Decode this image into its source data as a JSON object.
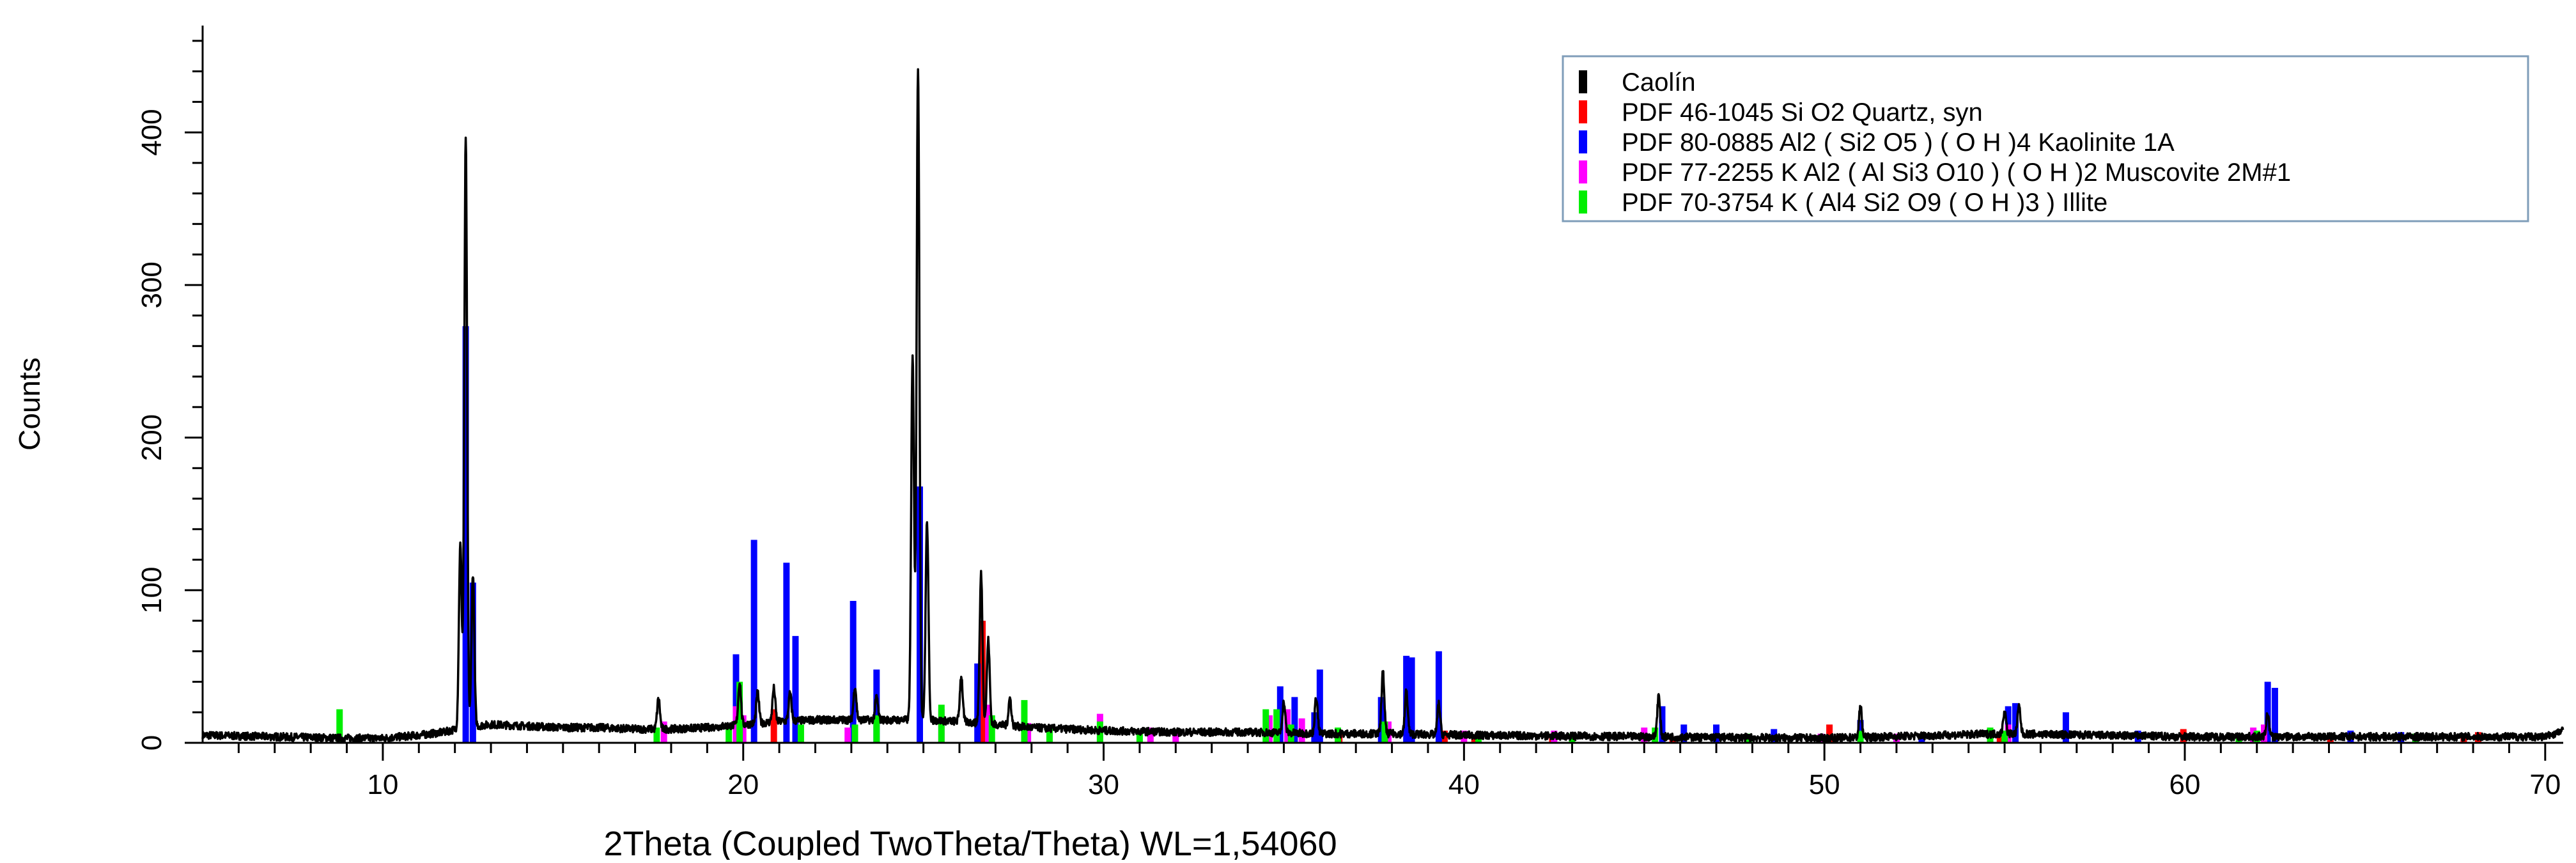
{
  "chart_data": {
    "type": "line",
    "xlabel": "2Theta (Coupled TwoTheta/Theta) WL=1,54060",
    "ylabel": "Counts",
    "xlim": [
      5,
      70.5
    ],
    "ylim": [
      0,
      470
    ],
    "x_ticks": [
      10,
      20,
      30,
      40,
      50,
      60,
      70
    ],
    "y_ticks": [
      0,
      100,
      200,
      300,
      400
    ],
    "grid": false,
    "legend_position": "top-right",
    "series": [
      {
        "name": "Caolín",
        "kind": "pattern",
        "color": "#000000",
        "baseline": [
          [
            5,
            5
          ],
          [
            7,
            4
          ],
          [
            9,
            3
          ],
          [
            10,
            3
          ],
          [
            11,
            5
          ],
          [
            11.7,
            7
          ],
          [
            12.2,
            10
          ],
          [
            13,
            12
          ],
          [
            14,
            11
          ],
          [
            15,
            10
          ],
          [
            16,
            10
          ],
          [
            17,
            9
          ],
          [
            18,
            9
          ],
          [
            19,
            10
          ],
          [
            20,
            12
          ],
          [
            21,
            14
          ],
          [
            22,
            15
          ],
          [
            23,
            15
          ],
          [
            24,
            15
          ],
          [
            25,
            15
          ],
          [
            26,
            14
          ],
          [
            27,
            12
          ],
          [
            28,
            10
          ],
          [
            29,
            9
          ],
          [
            30,
            8
          ],
          [
            32,
            7
          ],
          [
            34,
            7
          ],
          [
            36,
            6
          ],
          [
            38,
            6
          ],
          [
            40,
            5
          ],
          [
            45,
            4
          ],
          [
            50,
            3
          ],
          [
            55,
            6
          ],
          [
            60,
            4
          ],
          [
            65,
            4
          ],
          [
            70,
            4
          ],
          [
            70.5,
            8
          ]
        ],
        "peaks": [
          [
            12.3,
            385
          ],
          [
            12.15,
            120
          ],
          [
            12.5,
            100
          ],
          [
            17.65,
            20
          ],
          [
            19.9,
            28
          ],
          [
            20.4,
            20
          ],
          [
            20.85,
            22
          ],
          [
            21.3,
            18
          ],
          [
            23.1,
            22
          ],
          [
            23.7,
            15
          ],
          [
            24.85,
            428
          ],
          [
            24.7,
            240
          ],
          [
            25.1,
            130
          ],
          [
            26.05,
            30
          ],
          [
            26.6,
            98
          ],
          [
            26.8,
            55
          ],
          [
            27.4,
            18
          ],
          [
            35.0,
            20
          ],
          [
            35.9,
            24
          ],
          [
            37.75,
            40
          ],
          [
            38.4,
            28
          ],
          [
            39.3,
            20
          ],
          [
            45.4,
            27
          ],
          [
            51.0,
            20
          ],
          [
            55.0,
            15
          ],
          [
            55.4,
            18
          ],
          [
            62.3,
            15
          ]
        ]
      },
      {
        "name": "PDF 46-1045 Si O2 Quartz, syn",
        "kind": "sticks",
        "color": "#ff0000",
        "sticks": [
          [
            20.85,
            22
          ],
          [
            26.64,
            80
          ],
          [
            36.54,
            8
          ],
          [
            39.46,
            8
          ],
          [
            40.29,
            4
          ],
          [
            42.45,
            6
          ],
          [
            45.79,
            4
          ],
          [
            50.14,
            12
          ],
          [
            54.87,
            5
          ],
          [
            59.96,
            9
          ],
          [
            64.04,
            4
          ],
          [
            67.74,
            6
          ],
          [
            68.14,
            7
          ]
        ]
      },
      {
        "name": "PDF 80-0885 Al2 ( Si2 O5 ) ( O H )4 Kaolinite 1A",
        "kind": "sticks",
        "color": "#0000ff",
        "sticks": [
          [
            12.3,
            273
          ],
          [
            12.5,
            105
          ],
          [
            19.8,
            58
          ],
          [
            20.3,
            133
          ],
          [
            21.2,
            118
          ],
          [
            21.45,
            70
          ],
          [
            23.05,
            93
          ],
          [
            23.7,
            48
          ],
          [
            24.9,
            168
          ],
          [
            26.5,
            52
          ],
          [
            34.9,
            37
          ],
          [
            35.3,
            30
          ],
          [
            35.85,
            20
          ],
          [
            36.0,
            48
          ],
          [
            37.7,
            30
          ],
          [
            38.4,
            57
          ],
          [
            38.55,
            56
          ],
          [
            39.3,
            60
          ],
          [
            45.5,
            24
          ],
          [
            46.1,
            12
          ],
          [
            47.0,
            12
          ],
          [
            48.6,
            9
          ],
          [
            51.0,
            15
          ],
          [
            52.7,
            6
          ],
          [
            55.1,
            24
          ],
          [
            55.3,
            26
          ],
          [
            56.7,
            20
          ],
          [
            58.7,
            8
          ],
          [
            62.3,
            40
          ],
          [
            62.5,
            36
          ],
          [
            64.6,
            8
          ],
          [
            66.0,
            7
          ]
        ]
      },
      {
        "name": "PDF 77-2255 K Al2 ( Al Si3 O10 ) ( O H )2 Muscovite 2M#1",
        "kind": "sticks",
        "color": "#ff00ff",
        "sticks": [
          [
            17.8,
            14
          ],
          [
            19.8,
            24
          ],
          [
            20.0,
            18
          ],
          [
            22.9,
            10
          ],
          [
            25.5,
            22
          ],
          [
            26.8,
            25
          ],
          [
            27.9,
            13
          ],
          [
            29.9,
            19
          ],
          [
            31.3,
            10
          ],
          [
            32.0,
            8
          ],
          [
            34.6,
            18
          ],
          [
            35.1,
            22
          ],
          [
            35.5,
            16
          ],
          [
            37.9,
            14
          ],
          [
            40.0,
            8
          ],
          [
            42.5,
            8
          ],
          [
            45.0,
            10
          ],
          [
            49.9,
            6
          ],
          [
            52.0,
            6
          ],
          [
            55.1,
            12
          ],
          [
            61.9,
            10
          ],
          [
            62.2,
            12
          ]
        ]
      },
      {
        "name": "PDF 70-3754 K ( Al4 Si2 O9 ( O H )3 ) Illite",
        "kind": "sticks",
        "color": "#00ee00",
        "sticks": [
          [
            8.8,
            22
          ],
          [
            17.6,
            10
          ],
          [
            19.6,
            12
          ],
          [
            19.9,
            40
          ],
          [
            21.6,
            12
          ],
          [
            23.1,
            12
          ],
          [
            23.7,
            18
          ],
          [
            25.5,
            25
          ],
          [
            26.9,
            18
          ],
          [
            27.8,
            28
          ],
          [
            28.5,
            10
          ],
          [
            29.9,
            14
          ],
          [
            31.0,
            8
          ],
          [
            34.5,
            22
          ],
          [
            34.8,
            22
          ],
          [
            35.2,
            12
          ],
          [
            36.5,
            10
          ],
          [
            37.8,
            14
          ],
          [
            40.4,
            6
          ],
          [
            43.0,
            6
          ],
          [
            45.3,
            10
          ],
          [
            47.9,
            6
          ],
          [
            51.0,
            8
          ],
          [
            54.6,
            10
          ],
          [
            55.0,
            8
          ],
          [
            61.5,
            6
          ],
          [
            62.0,
            8
          ],
          [
            66.4,
            6
          ]
        ]
      }
    ]
  }
}
